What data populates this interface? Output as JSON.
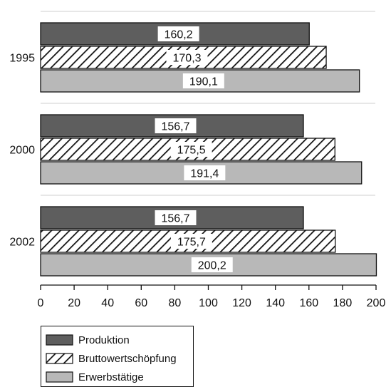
{
  "chart_data": {
    "type": "bar",
    "orientation": "horizontal",
    "categories": [
      "1995",
      "2000",
      "2002"
    ],
    "series": [
      {
        "name": "Produktion",
        "values": [
          160.2,
          156.7,
          156.7
        ],
        "labels": [
          "160,2",
          "156,7",
          "156,7"
        ],
        "fill": "#5e5e5e",
        "pattern": "solid"
      },
      {
        "name": "Bruttowertschöpfung",
        "values": [
          170.3,
          175.5,
          175.7
        ],
        "labels": [
          "170,3",
          "175,5",
          "175,7"
        ],
        "fill": "#ffffff",
        "pattern": "diagonal-hatch"
      },
      {
        "name": "Erwerbstätige",
        "values": [
          190.1,
          191.4,
          200.2
        ],
        "labels": [
          "190,1",
          "191,4",
          "200,2"
        ],
        "fill": "#b8b8b8",
        "pattern": "solid"
      }
    ],
    "xlim": [
      0,
      200
    ],
    "xticks": [
      "0",
      "20",
      "40",
      "60",
      "80",
      "100",
      "120",
      "140",
      "160",
      "180",
      "200"
    ],
    "title": "",
    "xlabel": "",
    "ylabel": "",
    "grid": false,
    "legend_position": "bottom-left"
  }
}
